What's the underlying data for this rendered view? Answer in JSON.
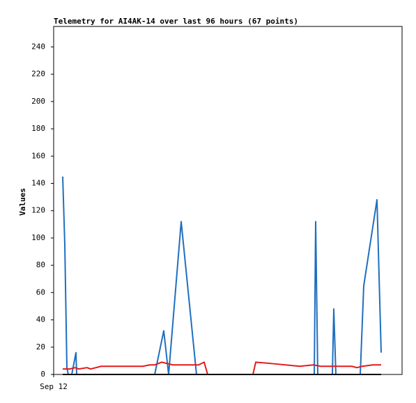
{
  "chart_data": {
    "type": "line",
    "title": "Telemetry for AI4AK-14 over last 96 hours (67 points)",
    "y_label": "Values",
    "xlim": [
      0,
      100
    ],
    "xticks": [
      {
        "value": 0,
        "label": "Sep 12"
      }
    ],
    "ylim": [
      0,
      255
    ],
    "yticks": [
      0,
      20,
      40,
      60,
      80,
      100,
      120,
      140,
      160,
      180,
      200,
      220,
      240
    ],
    "series": [
      {
        "color": "#1f6fbf",
        "x": [
          2.6,
          3.2,
          3.8,
          4.2,
          5.2,
          6.4,
          6.6,
          29,
          31.6,
          33,
          36.6,
          41,
          74.8,
          75.2,
          75.8,
          80,
          80.4,
          81,
          88,
          89,
          92.8,
          94
        ],
        "values": [
          145,
          95,
          5,
          0,
          0,
          16,
          0,
          0,
          32,
          0,
          112,
          0,
          0,
          112,
          0,
          0,
          48,
          0,
          0,
          65,
          128,
          16
        ]
      },
      {
        "color": "#e31a1c",
        "x": [
          2.6,
          4.6,
          6.2,
          7.2,
          9.6,
          10.6,
          13.6,
          25.6,
          27.6,
          29,
          31,
          32.6,
          34.2,
          41.6,
          43.2,
          44.2,
          57.2,
          58,
          62.6,
          70.6,
          74.6,
          76.6,
          85.6,
          87,
          88.6,
          91.6,
          94
        ],
        "values": [
          4,
          4,
          5,
          4,
          5,
          4,
          6,
          6,
          7,
          7,
          9,
          8,
          7,
          7,
          9,
          0,
          0,
          9,
          8,
          6,
          7,
          6,
          6,
          5,
          6,
          7,
          7
        ]
      },
      {
        "color": "#000000",
        "x": [
          2.6,
          94
        ],
        "values": [
          0,
          0
        ]
      }
    ]
  }
}
